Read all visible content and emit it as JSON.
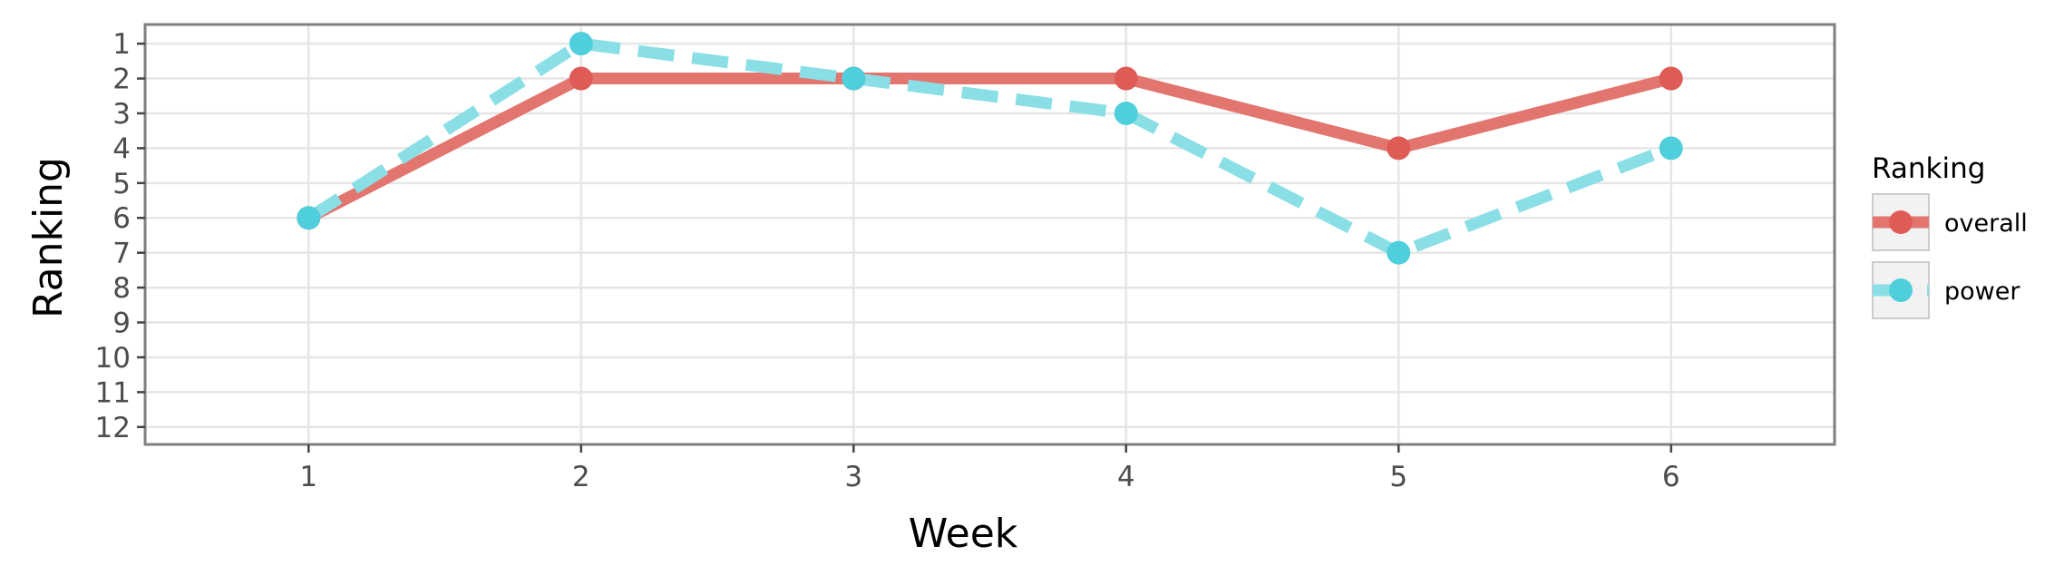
{
  "chart_data": {
    "type": "line",
    "title": "",
    "xlabel": "Week",
    "ylabel": "Ranking",
    "x": [
      1,
      2,
      3,
      4,
      5,
      6
    ],
    "xlim": [
      0.4,
      6.6
    ],
    "ylim": [
      12.5,
      0.45
    ],
    "y_reversed": true,
    "x_ticks": [
      "1",
      "2",
      "3",
      "4",
      "5",
      "6"
    ],
    "y_ticks": [
      "1",
      "2",
      "3",
      "4",
      "5",
      "6",
      "7",
      "8",
      "9",
      "10",
      "11",
      "12"
    ],
    "grid": true,
    "legend": {
      "title": "Ranking",
      "position": "right",
      "entries": [
        "overall",
        "power"
      ]
    },
    "series": [
      {
        "name": "overall",
        "values": [
          6,
          2,
          2,
          2,
          4,
          2
        ],
        "color": "#E2766F",
        "point_color": "#DF5B55",
        "line_style": "solid"
      },
      {
        "name": "power",
        "values": [
          6,
          1,
          2,
          3,
          7,
          4
        ],
        "color": "#8ADFE6",
        "point_color": "#4FCFDB",
        "line_style": "dashed"
      }
    ]
  }
}
